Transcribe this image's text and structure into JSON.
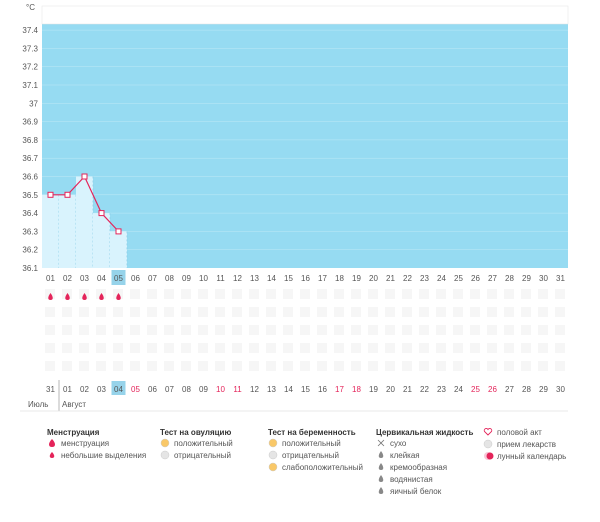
{
  "chart_data": {
    "type": "line",
    "unit_label": "°C",
    "yticks": [
      "36.1",
      "36.2",
      "36.3",
      "36.4",
      "36.5",
      "36.6",
      "36.7",
      "36.8",
      "36.9",
      "37",
      "37.1",
      "37.2",
      "37.3",
      "37.4"
    ],
    "ylim": [
      36.1,
      37.5
    ],
    "cycle_days": [
      "01",
      "02",
      "03",
      "04",
      "05",
      "06",
      "07",
      "08",
      "09",
      "10",
      "11",
      "12",
      "13",
      "14",
      "15",
      "16",
      "17",
      "18",
      "19",
      "20",
      "21",
      "22",
      "23",
      "24",
      "25",
      "26",
      "27",
      "28",
      "29",
      "30",
      "31"
    ],
    "highlight_index": 4,
    "series": [
      {
        "x": [
          "01",
          "02",
          "03",
          "04",
          "05"
        ],
        "values": [
          36.5,
          36.5,
          36.6,
          36.4,
          36.3
        ]
      }
    ],
    "menstruation_days": [
      0,
      1,
      2,
      3,
      4
    ],
    "light_discharge_days": [],
    "calendar_days": [
      "31",
      "01",
      "02",
      "03",
      "04",
      "05",
      "06",
      "07",
      "08",
      "09",
      "10",
      "11",
      "12",
      "13",
      "14",
      "15",
      "16",
      "17",
      "18",
      "19",
      "20",
      "21",
      "22",
      "23",
      "24",
      "25",
      "26",
      "27",
      "28",
      "29",
      "30"
    ],
    "calendar_red_index": [
      5,
      10,
      11,
      17,
      18,
      25,
      26
    ],
    "calendar_today_index": 4,
    "month_labels": [
      "Июль",
      "Август"
    ],
    "colors": {
      "plot_bg": "#96dbf2",
      "line": "#e4245a",
      "fill_light": "#d9f3fd",
      "today": "#96d3ea",
      "red": "#e4245a"
    }
  },
  "legend": [
    {
      "title": "Менструация",
      "items": [
        {
          "icon": "drop-large-icon",
          "label": "менструация"
        },
        {
          "icon": "drop-small-icon",
          "label": "небольшие выделения"
        }
      ]
    },
    {
      "title": "Тест на овуляцию",
      "items": [
        {
          "icon": "sun-positive-icon",
          "label": "положительный"
        },
        {
          "icon": "sun-negative-icon",
          "label": "отрицательный"
        }
      ]
    },
    {
      "title": "Тест на беременность",
      "items": [
        {
          "icon": "pregnancy-positive-icon",
          "label": "положительный"
        },
        {
          "icon": "pregnancy-negative-icon",
          "label": "отрицательный"
        },
        {
          "icon": "pregnancy-weak-icon",
          "label": "слабоположительный"
        }
      ]
    },
    {
      "title": "Цервикальная жидкость",
      "items": [
        {
          "icon": "cross-icon",
          "label": "сухо"
        },
        {
          "icon": "sticky-icon",
          "label": "клейкая"
        },
        {
          "icon": "creamy-icon",
          "label": "кремообразная"
        },
        {
          "icon": "watery-icon",
          "label": "водянистая"
        },
        {
          "icon": "egg-white-icon",
          "label": "яичный белок"
        }
      ]
    },
    {
      "title": "",
      "items": [
        {
          "icon": "heart-icon",
          "label": "половой акт"
        },
        {
          "icon": "pill-icon",
          "label": "прием лекарств"
        },
        {
          "icon": "moon-icon",
          "label": "лунный календарь"
        }
      ]
    }
  ]
}
